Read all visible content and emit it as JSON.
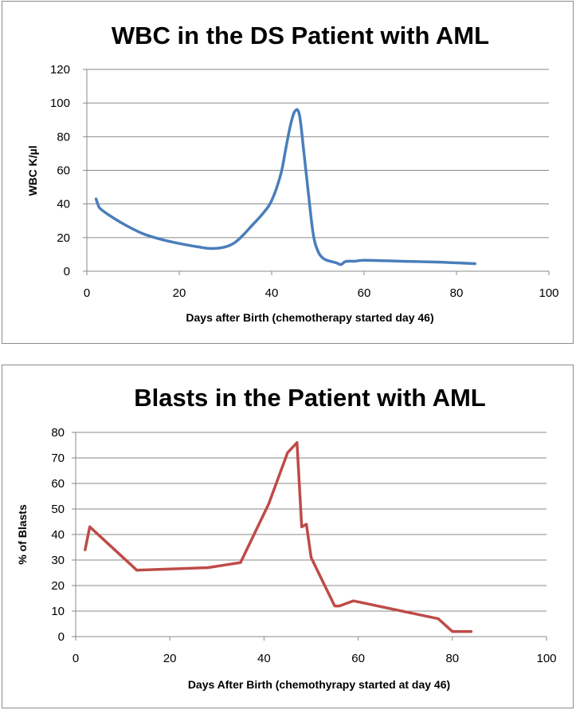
{
  "chart_data": [
    {
      "type": "line",
      "title": "WBC in the DS Patient with AML",
      "xlabel": "Days after Birth (chemotherapy started day 46)",
      "ylabel": "WBC K/µl",
      "xlim": [
        0,
        100
      ],
      "ylim": [
        0,
        120
      ],
      "xticks": [
        0,
        20,
        40,
        60,
        80,
        100
      ],
      "yticks": [
        0,
        20,
        40,
        60,
        80,
        100,
        120
      ],
      "grid": "horizontal",
      "legend": "none",
      "smooth": true,
      "color": "#4a7ebb",
      "series": [
        {
          "x": [
            2,
            2.5,
            3,
            5,
            8,
            12,
            16,
            20,
            24,
            27,
            30,
            32,
            34,
            36,
            38,
            40,
            42,
            43,
            44,
            45,
            46,
            47,
            48,
            49,
            50,
            51,
            52,
            54,
            55,
            56,
            58,
            60,
            65,
            70,
            75,
            80,
            84
          ],
          "y": [
            43,
            39,
            37,
            33,
            28,
            22.5,
            19,
            16.5,
            14.5,
            13.5,
            14.5,
            17,
            22,
            28,
            34,
            42,
            58,
            72,
            86,
            95,
            93,
            70,
            45,
            22,
            12,
            8,
            6.5,
            5,
            4,
            5.8,
            6,
            6.5,
            6.2,
            5.8,
            5.5,
            5,
            4.5
          ]
        }
      ]
    },
    {
      "type": "line",
      "title": "Blasts in the Patient with AML",
      "xlabel": "Days After Birth (chemothyrapy started at day 46)",
      "ylabel": "% of Blasts",
      "xlim": [
        0,
        100
      ],
      "ylim": [
        0,
        80
      ],
      "xticks": [
        0,
        20,
        40,
        60,
        80,
        100
      ],
      "yticks": [
        0,
        10,
        20,
        30,
        40,
        50,
        60,
        70,
        80
      ],
      "grid": "horizontal",
      "legend": "none",
      "smooth": false,
      "color": "#be4b48",
      "series": [
        {
          "x": [
            2,
            3,
            13,
            28,
            35,
            41,
            45,
            47,
            48,
            49,
            50,
            55,
            56,
            59,
            77,
            80,
            84
          ],
          "y": [
            34,
            43,
            26,
            27,
            29,
            52,
            72,
            76,
            43,
            44,
            31,
            12,
            12,
            14,
            7,
            2,
            2
          ]
        }
      ]
    }
  ]
}
